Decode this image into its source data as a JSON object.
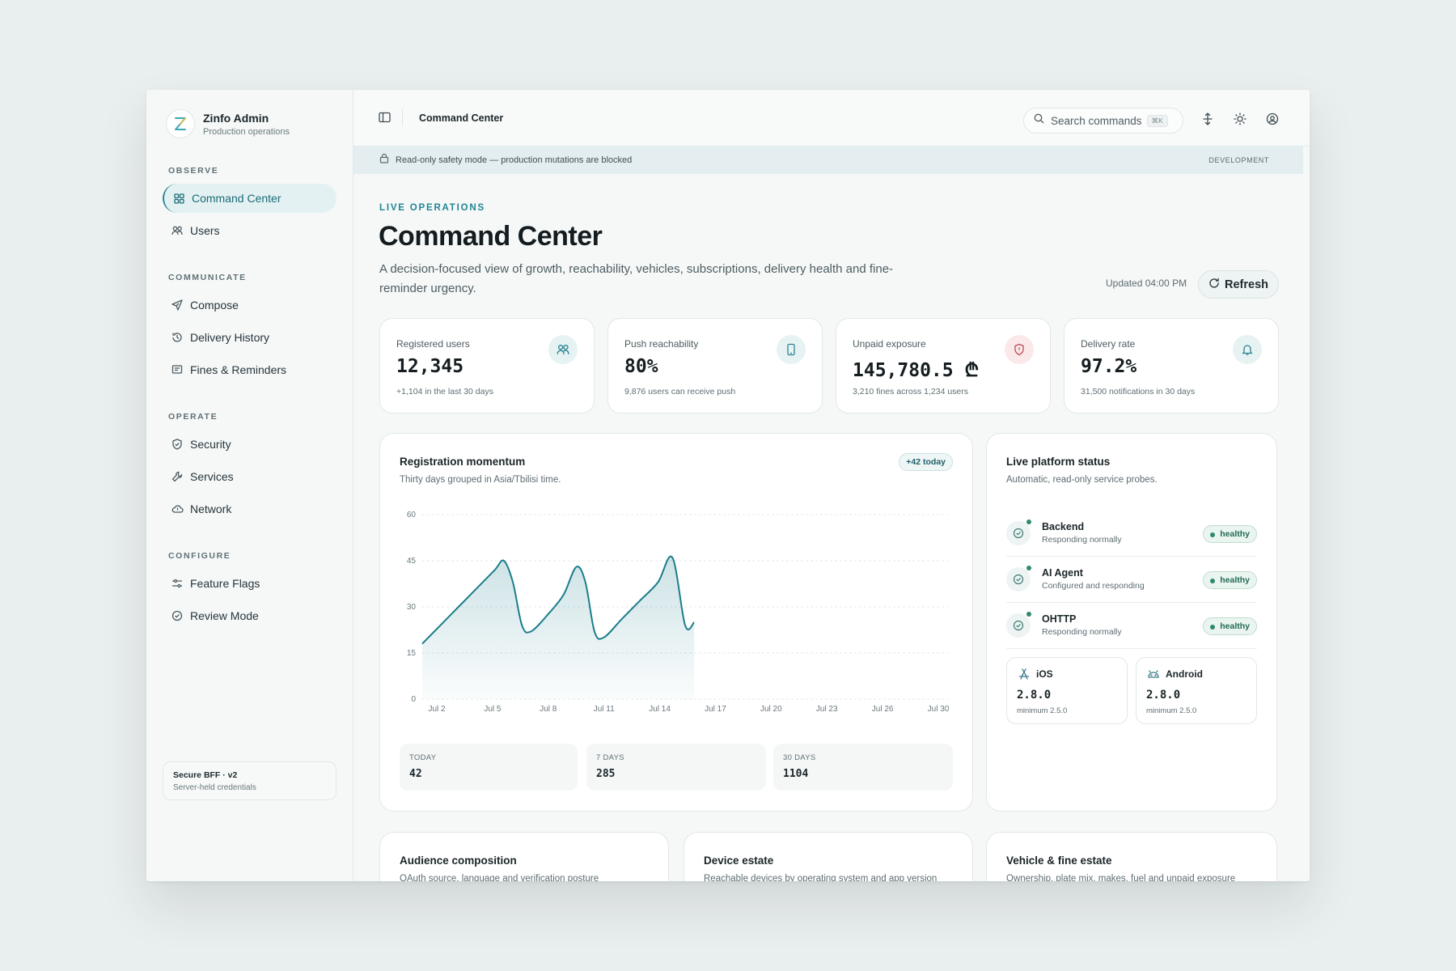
{
  "sidebar": {
    "brand_name": "Zinfo Admin",
    "brand_sub": "Production operations",
    "sections": {
      "observe": "OBSERVE",
      "communicate": "COMMUNICATE",
      "operate": "OPERATE",
      "configure": "CONFIGURE"
    },
    "items": {
      "command_center": "Command Center",
      "users": "Users",
      "compose": "Compose",
      "delivery_history": "Delivery History",
      "fines_reminders": "Fines & Reminders",
      "security": "Security",
      "services": "Services",
      "network": "Network",
      "feature_flags": "Feature Flags",
      "review_mode": "Review Mode"
    },
    "footer_title": "Secure BFF · v2",
    "footer_sub": "Server-held credentials"
  },
  "topbar": {
    "title": "Command Center",
    "search_placeholder": "Search commands",
    "search_shortcut": "⌘K"
  },
  "banner": {
    "text": "Read-only safety mode — production mutations are blocked",
    "env": "DEVELOPMENT"
  },
  "header": {
    "eyebrow": "LIVE OPERATIONS",
    "title": "Command Center",
    "lead": "A decision-focused view of growth, reachability, vehicles, subscriptions, delivery health and fine-reminder urgency.",
    "updated": "Updated 04:00 PM",
    "refresh_label": "Refresh"
  },
  "kpis": [
    {
      "label": "Registered users",
      "value": "12,345",
      "note": "+1,104 in the last 30 days",
      "icon": "users-icon",
      "tint": "#e7f2f3",
      "color": "#2a8592"
    },
    {
      "label": "Push reachability",
      "value": "80%",
      "note": "9,876 users can receive push",
      "icon": "phone-icon",
      "tint": "#e7f2f3",
      "color": "#2a8592"
    },
    {
      "label": "Unpaid exposure",
      "value": "145,780.5 ₾",
      "note": "3,210 fines across 1,234 users",
      "icon": "shield-icon",
      "tint": "#fbe9ea",
      "color": "#c04a55"
    },
    {
      "label": "Delivery rate",
      "value": "97.2%",
      "note": "31,500 notifications in 30 days",
      "icon": "bell-icon",
      "tint": "#e7f2f3",
      "color": "#2a8592"
    }
  ],
  "registration": {
    "title": "Registration momentum",
    "subtitle": "Thirty days grouped in Asia/Tbilisi time.",
    "badge": "+42 today",
    "stats": [
      {
        "label": "TODAY",
        "value": "42"
      },
      {
        "label": "7 DAYS",
        "value": "285"
      },
      {
        "label": "30 DAYS",
        "value": "1104"
      }
    ]
  },
  "chart_data": {
    "type": "area",
    "x_ticks": [
      "Jul 2",
      "Jul 5",
      "Jul 8",
      "Jul 11",
      "Jul 14",
      "Jul 17",
      "Jul 20",
      "Jul 23",
      "Jul 26",
      "Jul 30"
    ],
    "y_ticks": [
      0,
      15,
      30,
      45,
      60
    ],
    "ylim": [
      0,
      60
    ],
    "xlim": [
      1,
      30
    ],
    "x": [
      1,
      2,
      3,
      4,
      5,
      5.5,
      6,
      6.5,
      7,
      8,
      8.8,
      9.5,
      10,
      10.5,
      11,
      12,
      13,
      14,
      14.8,
      15.5,
      16
    ],
    "y": [
      18,
      24,
      30,
      36,
      42,
      45,
      38,
      24,
      22,
      28,
      34,
      43,
      38,
      22,
      20,
      26,
      32,
      38,
      46,
      24,
      25
    ],
    "color": "#1c7d8b",
    "grid": true
  },
  "platform": {
    "title": "Live platform status",
    "subtitle": "Automatic, read-only service probes.",
    "services": [
      {
        "name": "Backend",
        "desc": "Responding normally",
        "status": "healthy"
      },
      {
        "name": "AI Agent",
        "desc": "Configured and responding",
        "status": "healthy"
      },
      {
        "name": "OHTTP",
        "desc": "Responding normally",
        "status": "healthy"
      }
    ],
    "ios": {
      "name": "iOS",
      "version": "2.8.0",
      "minimum": "minimum 2.5.0"
    },
    "android": {
      "name": "Android",
      "version": "2.8.0",
      "minimum": "minimum 2.5.0"
    }
  },
  "bottom_cards": [
    {
      "title": "Audience composition",
      "subtitle": "OAuth source, language and verification posture"
    },
    {
      "title": "Device estate",
      "subtitle": "Reachable devices by operating system and app version"
    },
    {
      "title": "Vehicle & fine estate",
      "subtitle": "Ownership, plate mix, makes, fuel and unpaid exposure"
    }
  ],
  "colors": {
    "accent": "#1f8595",
    "healthy": "#2f8a6c",
    "danger": "#c04a55"
  }
}
